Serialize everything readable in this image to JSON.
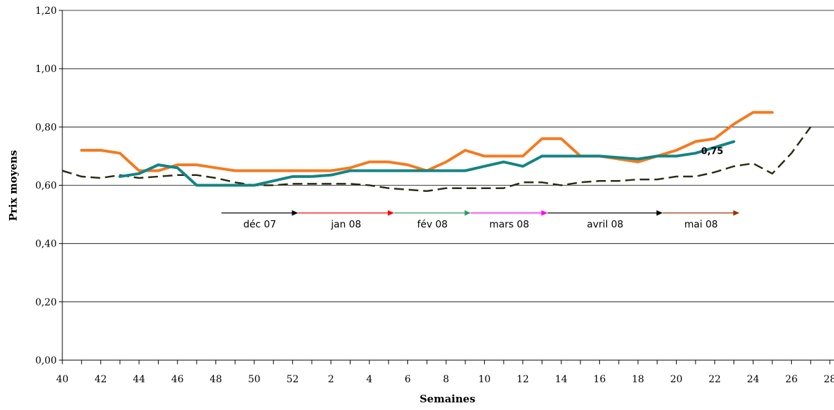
{
  "chart_data": {
    "type": "line",
    "xlabel": "Semaines",
    "ylabel": "Prix moyens",
    "ylim": [
      0,
      1.2
    ],
    "y_ticks": [
      "0,00",
      "0,20",
      "0,40",
      "0,60",
      "0,80",
      "1,00",
      "1,20"
    ],
    "x_tick_labels": [
      "40",
      "42",
      "44",
      "46",
      "48",
      "50",
      "52",
      "2",
      "4",
      "6",
      "8",
      "10",
      "12",
      "14",
      "16",
      "18",
      "20",
      "22",
      "24",
      "26",
      "28"
    ],
    "grid": "horizontal",
    "series": [
      {
        "style": "solid",
        "color": "#F57A1F",
        "values": [
          null,
          0.72,
          0.72,
          0.71,
          0.65,
          0.65,
          0.67,
          0.67,
          0.66,
          0.65,
          0.65,
          0.65,
          0.65,
          0.65,
          0.65,
          0.66,
          0.68,
          0.68,
          0.67,
          0.65,
          0.68,
          0.72,
          0.7,
          0.7,
          0.7,
          0.76,
          0.76,
          0.7,
          0.7,
          0.69,
          0.68,
          0.7,
          0.72,
          0.75,
          0.76,
          0.81,
          0.85,
          0.85,
          null,
          null,
          null,
          null
        ]
      },
      {
        "style": "solid",
        "color": "#138484",
        "values": [
          null,
          null,
          null,
          0.63,
          0.64,
          0.67,
          0.66,
          0.6,
          0.6,
          0.6,
          0.6,
          0.615,
          0.63,
          0.63,
          0.635,
          0.65,
          0.65,
          0.65,
          0.65,
          0.65,
          0.65,
          0.65,
          0.665,
          0.68,
          0.665,
          0.7,
          0.7,
          0.7,
          0.7,
          0.695,
          0.69,
          0.7,
          0.7,
          0.71,
          0.73,
          0.75,
          null,
          null,
          null,
          null,
          null,
          null
        ]
      },
      {
        "style": "dashed",
        "color": "#2B2B12",
        "values": [
          0.65,
          0.63,
          0.625,
          0.635,
          0.625,
          0.63,
          0.635,
          0.635,
          0.625,
          0.61,
          0.6,
          0.6,
          0.605,
          0.605,
          0.605,
          0.605,
          0.6,
          0.59,
          0.585,
          0.58,
          0.59,
          0.59,
          0.59,
          0.59,
          0.61,
          0.61,
          0.6,
          0.61,
          0.615,
          0.615,
          0.62,
          0.62,
          0.63,
          0.63,
          0.645,
          0.665,
          0.675,
          0.64,
          0.71,
          0.8,
          null,
          null
        ]
      }
    ],
    "annotation": {
      "text": "0,75",
      "at_index": 33,
      "value": 0.75
    },
    "months": [
      {
        "label": "déc 07",
        "start": 8,
        "end": 12,
        "color": "#000000"
      },
      {
        "label": "jan 08",
        "start": 12,
        "end": 17,
        "color": "#FF0000"
      },
      {
        "label": "fév 08",
        "start": 17,
        "end": 21,
        "color": "#339966"
      },
      {
        "label": "mars 08",
        "start": 21,
        "end": 25,
        "color": "#FF00FF"
      },
      {
        "label": "avril 08",
        "start": 25,
        "end": 31,
        "color": "#000000"
      },
      {
        "label": "mai 08",
        "start": 31,
        "end": 35,
        "color": "#993300"
      }
    ],
    "months_level": 0.505
  }
}
